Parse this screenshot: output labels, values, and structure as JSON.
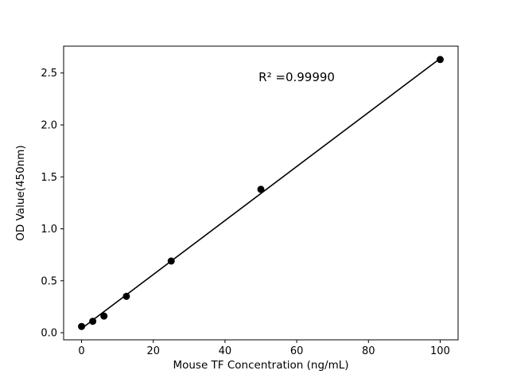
{
  "chart_data": {
    "type": "scatter",
    "title": "",
    "xlabel": "Mouse TF Concentration (ng/mL)",
    "ylabel": "OD Value(450nm)",
    "x": [
      0,
      3.125,
      6.25,
      12.5,
      25,
      50,
      100
    ],
    "y": [
      0.06,
      0.11,
      0.16,
      0.35,
      0.69,
      1.38,
      2.63
    ],
    "trendline": {
      "x": [
        0,
        100
      ],
      "y": [
        0.04,
        2.64
      ]
    },
    "annotation": {
      "text": "R² =0.99990",
      "x": 60,
      "y": 2.42
    },
    "xlim": [
      -5,
      105
    ],
    "ylim": [
      -0.0685,
      2.7585
    ],
    "xticks": [
      0,
      20,
      40,
      60,
      80,
      100
    ],
    "xtick_labels": [
      "0",
      "20",
      "40",
      "60",
      "80",
      "100"
    ],
    "yticks": [
      0.0,
      0.5,
      1.0,
      1.5,
      2.0,
      2.5
    ],
    "ytick_labels": [
      "0.0",
      "0.5",
      "1.0",
      "1.5",
      "2.0",
      "2.5"
    ],
    "grid": false,
    "legend": "none",
    "marker_color": "#000000",
    "line_color": "#000000",
    "frame_color": "#000000",
    "background_color": "#ffffff"
  }
}
